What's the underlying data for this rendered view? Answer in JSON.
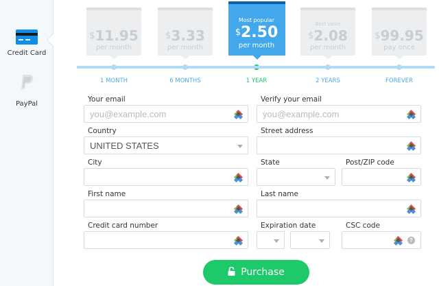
{
  "sidebar": {
    "items": [
      {
        "label": "Credit Card",
        "icon": "credit-card-icon",
        "selected": true
      },
      {
        "label": "PayPal",
        "icon": "paypal-icon",
        "selected": false
      }
    ]
  },
  "plans": [
    {
      "badge": "",
      "currency": "$",
      "price": "11.95",
      "period": "per month",
      "label": "1 MONTH"
    },
    {
      "badge": "",
      "currency": "$",
      "price": "3.33",
      "period": "per month",
      "label": "6 MONTHS"
    },
    {
      "badge": "Most popular",
      "currency": "$",
      "price": "2.50",
      "period": "per month",
      "label": "1 YEAR",
      "selected": true
    },
    {
      "badge": "Best value",
      "currency": "$",
      "price": "2.08",
      "period": "per month",
      "label": "2 YEARS"
    },
    {
      "badge": "",
      "currency": "$",
      "price": "99.95",
      "period": "pay once",
      "label": "FOREVER"
    }
  ],
  "form": {
    "email": {
      "label": "Your email",
      "placeholder": "you@example.com"
    },
    "verify_email": {
      "label": "Verify your email",
      "placeholder": "you@example.com"
    },
    "country": {
      "label": "Country",
      "value": "UNITED STATES"
    },
    "street": {
      "label": "Street address",
      "value": ""
    },
    "city": {
      "label": "City",
      "value": ""
    },
    "state": {
      "label": "State",
      "value": ""
    },
    "zip": {
      "label": "Post/ZIP code",
      "value": ""
    },
    "first_name": {
      "label": "First name",
      "value": ""
    },
    "last_name": {
      "label": "Last name",
      "value": ""
    },
    "card_number": {
      "label": "Credit card number",
      "value": ""
    },
    "expiration": {
      "label": "Expiration date",
      "month": "",
      "year": ""
    },
    "csc": {
      "label": "CSC code",
      "value": "",
      "help": "?"
    }
  },
  "purchase_label": "Purchase",
  "colors": {
    "accent": "#42a8eb",
    "success": "#1ec96a"
  }
}
